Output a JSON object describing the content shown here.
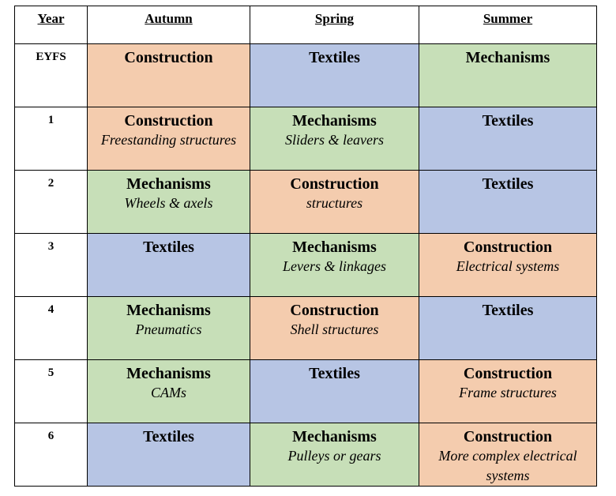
{
  "headers": [
    "Year",
    "Autumn",
    "Spring",
    "Summer"
  ],
  "rows": [
    {
      "year": "EYFS",
      "cells": [
        {
          "topic": "Construction",
          "sub": "",
          "color": "#f4ccae"
        },
        {
          "topic": "Textiles",
          "sub": "",
          "color": "#b7c5e4"
        },
        {
          "topic": "Mechanisms",
          "sub": "",
          "color": "#c7dfb8"
        }
      ]
    },
    {
      "year": "1",
      "cells": [
        {
          "topic": "Construction",
          "sub": "Freestanding structures",
          "color": "#f4ccae"
        },
        {
          "topic": "Mechanisms",
          "sub": "Sliders & leavers",
          "color": "#c7dfb8"
        },
        {
          "topic": "Textiles",
          "sub": "",
          "color": "#b7c5e4"
        }
      ]
    },
    {
      "year": "2",
      "cells": [
        {
          "topic": "Mechanisms",
          "sub": "Wheels & axels",
          "color": "#c7dfb8"
        },
        {
          "topic": "Construction",
          "sub": "structures",
          "color": "#f4ccae"
        },
        {
          "topic": "Textiles",
          "sub": "",
          "color": "#b7c5e4"
        }
      ]
    },
    {
      "year": "3",
      "cells": [
        {
          "topic": "Textiles",
          "sub": "",
          "color": "#b7c5e4"
        },
        {
          "topic": "Mechanisms",
          "sub": "Levers & linkages",
          "color": "#c7dfb8"
        },
        {
          "topic": "Construction",
          "sub": "Electrical systems",
          "color": "#f4ccae"
        }
      ]
    },
    {
      "year": "4",
      "cells": [
        {
          "topic": "Mechanisms",
          "sub": "Pneumatics",
          "color": "#c7dfb8"
        },
        {
          "topic": "Construction",
          "sub": "Shell structures",
          "color": "#f4ccae"
        },
        {
          "topic": "Textiles",
          "sub": "",
          "color": "#b7c5e4"
        }
      ]
    },
    {
      "year": "5",
      "cells": [
        {
          "topic": "Mechanisms",
          "sub": "CAMs",
          "color": "#c7dfb8"
        },
        {
          "topic": "Textiles",
          "sub": "",
          "color": "#b7c5e4"
        },
        {
          "topic": "Construction",
          "sub": "Frame structures",
          "color": "#f4ccae"
        }
      ]
    },
    {
      "year": "6",
      "cells": [
        {
          "topic": "Textiles",
          "sub": "",
          "color": "#b7c5e4"
        },
        {
          "topic": "Mechanisms",
          "sub": "Pulleys or gears",
          "color": "#c7dfb8"
        },
        {
          "topic": "Construction",
          "sub": "More complex electrical systems",
          "color": "#f4ccae"
        }
      ]
    }
  ]
}
